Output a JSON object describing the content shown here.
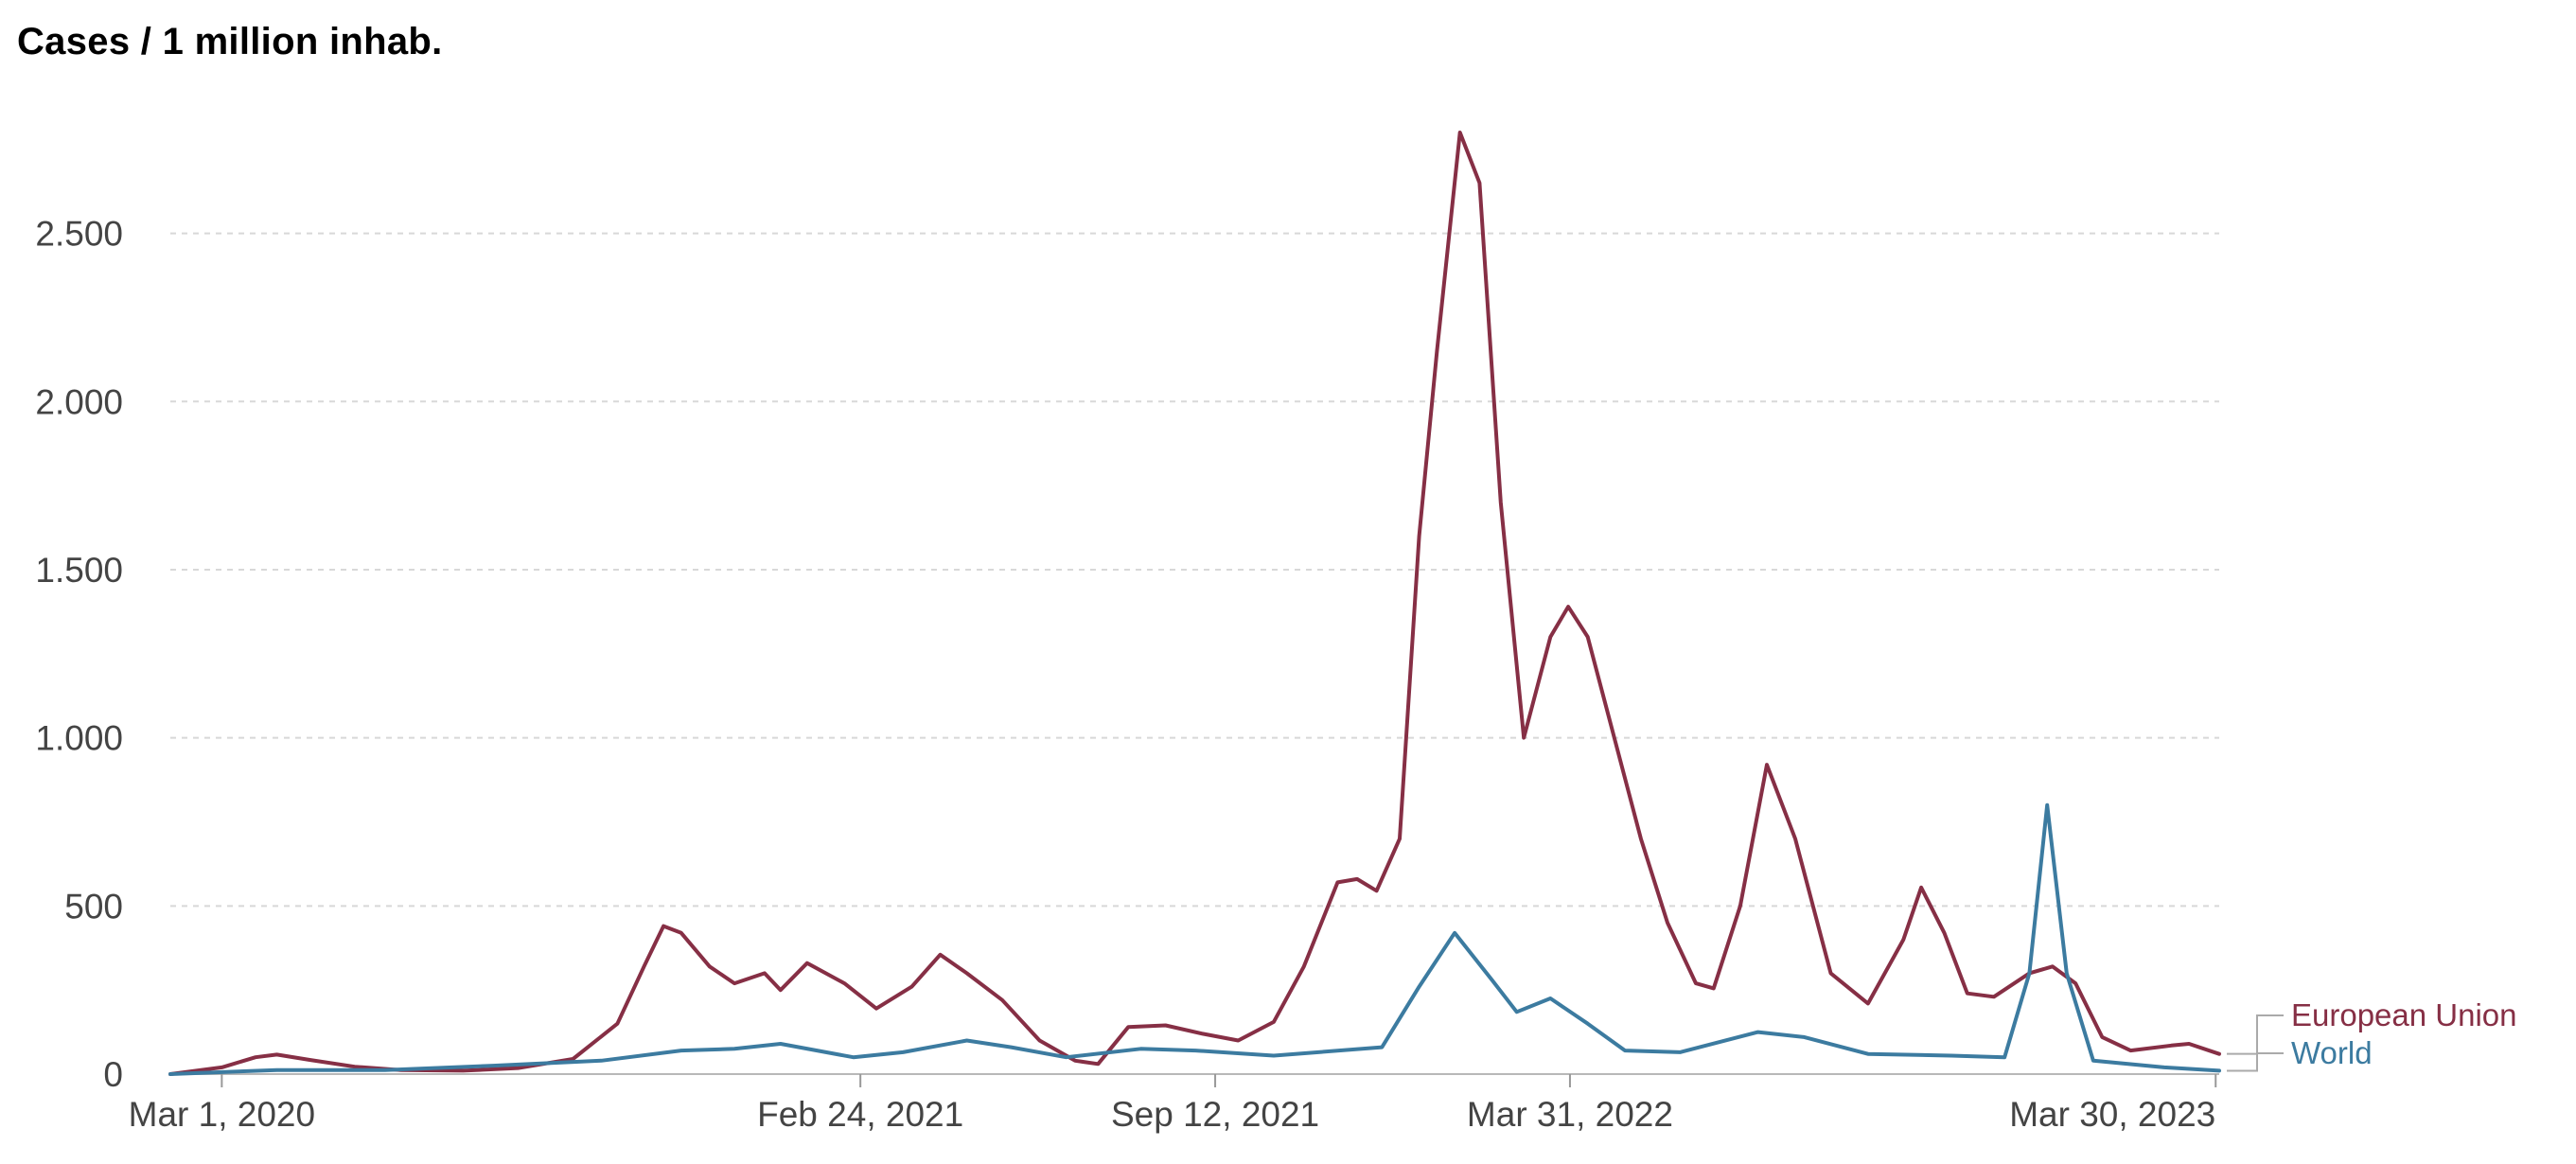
{
  "title": "Cases / 1 million inhab.",
  "chart_data": {
    "type": "line",
    "title": "Cases / 1 million inhab.",
    "xlabel": "",
    "ylabel": "",
    "x_ticks": [
      "2020-03-01",
      "2021-02-24",
      "2021-09-12",
      "2022-03-31",
      "2023-03-30"
    ],
    "x_tick_labels": [
      "Mar 1, 2020",
      "Feb 24, 2021",
      "Sep 12, 2021",
      "Mar 31, 2022",
      "Mar 30, 2023"
    ],
    "y_ticks": [
      0,
      500,
      1000,
      1500,
      2000,
      2500
    ],
    "y_tick_labels": [
      "0",
      "500",
      "1.000",
      "1.500",
      "2.000",
      "2.500"
    ],
    "xlim": [
      "2020-02-01",
      "2023-04-01"
    ],
    "ylim": [
      0,
      2800
    ],
    "grid": "horizontal dashed",
    "legend": "right end of lines",
    "series": [
      {
        "name": "European Union",
        "color": "#862f45",
        "points": [
          [
            "2020-02-01",
            0
          ],
          [
            "2020-03-01",
            20
          ],
          [
            "2020-03-20",
            50
          ],
          [
            "2020-04-01",
            58
          ],
          [
            "2020-04-20",
            42
          ],
          [
            "2020-05-15",
            22
          ],
          [
            "2020-06-10",
            12
          ],
          [
            "2020-07-15",
            10
          ],
          [
            "2020-08-15",
            18
          ],
          [
            "2020-09-15",
            45
          ],
          [
            "2020-10-10",
            150
          ],
          [
            "2020-10-25",
            320
          ],
          [
            "2020-11-05",
            440
          ],
          [
            "2020-11-15",
            420
          ],
          [
            "2020-12-01",
            320
          ],
          [
            "2020-12-15",
            270
          ],
          [
            "2021-01-01",
            300
          ],
          [
            "2021-01-10",
            250
          ],
          [
            "2021-01-25",
            330
          ],
          [
            "2021-02-15",
            270
          ],
          [
            "2021-03-05",
            195
          ],
          [
            "2021-03-25",
            260
          ],
          [
            "2021-04-10",
            355
          ],
          [
            "2021-04-25",
            300
          ],
          [
            "2021-05-15",
            220
          ],
          [
            "2021-06-05",
            100
          ],
          [
            "2021-06-25",
            40
          ],
          [
            "2021-07-08",
            30
          ],
          [
            "2021-07-25",
            140
          ],
          [
            "2021-08-15",
            145
          ],
          [
            "2021-09-05",
            120
          ],
          [
            "2021-09-25",
            100
          ],
          [
            "2021-10-15",
            155
          ],
          [
            "2021-11-01",
            320
          ],
          [
            "2021-11-20",
            570
          ],
          [
            "2021-12-01",
            580
          ],
          [
            "2021-12-12",
            545
          ],
          [
            "2021-12-25",
            700
          ],
          [
            "2022-01-05",
            1600
          ],
          [
            "2022-01-15",
            2150
          ],
          [
            "2022-01-28",
            2800
          ],
          [
            "2022-02-08",
            2650
          ],
          [
            "2022-02-20",
            1700
          ],
          [
            "2022-03-05",
            1000
          ],
          [
            "2022-03-20",
            1300
          ],
          [
            "2022-03-30",
            1390
          ],
          [
            "2022-04-10",
            1300
          ],
          [
            "2022-04-25",
            1000
          ],
          [
            "2022-05-10",
            700
          ],
          [
            "2022-05-25",
            450
          ],
          [
            "2022-06-10",
            270
          ],
          [
            "2022-06-20",
            255
          ],
          [
            "2022-07-05",
            500
          ],
          [
            "2022-07-20",
            920
          ],
          [
            "2022-08-05",
            700
          ],
          [
            "2022-08-25",
            300
          ],
          [
            "2022-09-15",
            210
          ],
          [
            "2022-10-05",
            400
          ],
          [
            "2022-10-15",
            555
          ],
          [
            "2022-10-28",
            420
          ],
          [
            "2022-11-10",
            240
          ],
          [
            "2022-11-25",
            230
          ],
          [
            "2022-12-15",
            300
          ],
          [
            "2022-12-28",
            320
          ],
          [
            "2023-01-10",
            270
          ],
          [
            "2023-01-25",
            110
          ],
          [
            "2023-02-10",
            70
          ],
          [
            "2023-03-05",
            85
          ],
          [
            "2023-03-15",
            90
          ],
          [
            "2023-04-01",
            60
          ]
        ]
      },
      {
        "name": "World",
        "color": "#3c7ba0",
        "points": [
          [
            "2020-02-01",
            0
          ],
          [
            "2020-04-01",
            12
          ],
          [
            "2020-06-01",
            12
          ],
          [
            "2020-08-01",
            25
          ],
          [
            "2020-10-01",
            40
          ],
          [
            "2020-11-15",
            70
          ],
          [
            "2020-12-15",
            75
          ],
          [
            "2021-01-10",
            90
          ],
          [
            "2021-02-20",
            50
          ],
          [
            "2021-03-20",
            65
          ],
          [
            "2021-04-25",
            100
          ],
          [
            "2021-05-20",
            80
          ],
          [
            "2021-06-20",
            50
          ],
          [
            "2021-08-01",
            75
          ],
          [
            "2021-09-01",
            70
          ],
          [
            "2021-10-15",
            55
          ],
          [
            "2021-12-15",
            80
          ],
          [
            "2022-01-05",
            260
          ],
          [
            "2022-01-25",
            420
          ],
          [
            "2022-02-15",
            280
          ],
          [
            "2022-03-01",
            185
          ],
          [
            "2022-03-20",
            225
          ],
          [
            "2022-04-10",
            150
          ],
          [
            "2022-05-01",
            70
          ],
          [
            "2022-06-01",
            65
          ],
          [
            "2022-07-15",
            125
          ],
          [
            "2022-08-10",
            110
          ],
          [
            "2022-09-15",
            60
          ],
          [
            "2022-11-01",
            55
          ],
          [
            "2022-12-01",
            50
          ],
          [
            "2022-12-15",
            300
          ],
          [
            "2022-12-25",
            800
          ],
          [
            "2023-01-05",
            300
          ],
          [
            "2023-01-20",
            40
          ],
          [
            "2023-03-01",
            20
          ],
          [
            "2023-04-01",
            10
          ]
        ]
      }
    ]
  }
}
